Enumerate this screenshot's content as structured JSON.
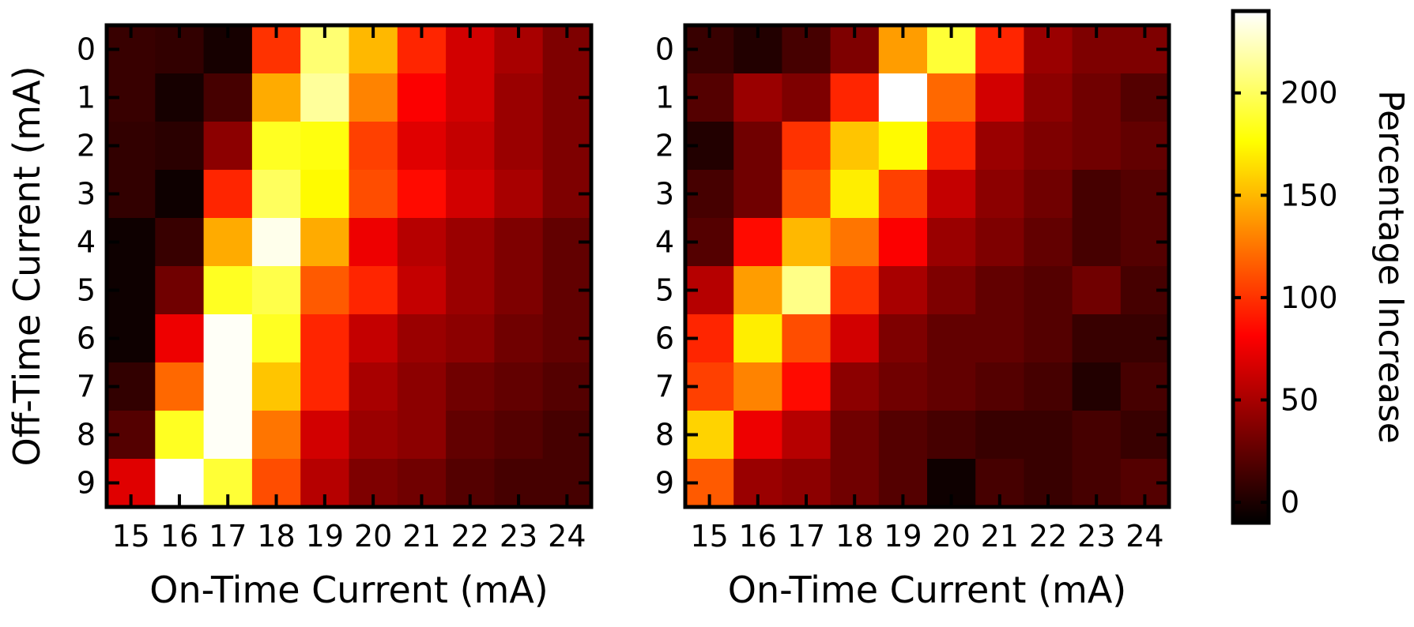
{
  "chart_data": [
    {
      "type": "heatmap",
      "xlabel": "On-Time Current (mA)",
      "ylabel": "Off-Time Current (mA)",
      "x_categories": [
        "15",
        "16",
        "17",
        "18",
        "19",
        "20",
        "21",
        "22",
        "23",
        "24"
      ],
      "y_categories": [
        "0",
        "1",
        "2",
        "3",
        "4",
        "5",
        "6",
        "7",
        "8",
        "9"
      ],
      "values": [
        [
          10,
          8,
          -2,
          100,
          205,
          150,
          95,
          65,
          50,
          35
        ],
        [
          10,
          -2,
          15,
          145,
          215,
          130,
          80,
          65,
          45,
          35
        ],
        [
          8,
          5,
          40,
          185,
          180,
          105,
          70,
          60,
          45,
          35
        ],
        [
          8,
          -5,
          95,
          200,
          175,
          110,
          85,
          65,
          50,
          35
        ],
        [
          -5,
          10,
          145,
          235,
          145,
          75,
          55,
          45,
          35,
          25
        ],
        [
          -5,
          30,
          185,
          195,
          115,
          95,
          60,
          45,
          35,
          25
        ],
        [
          -5,
          75,
          238,
          185,
          95,
          60,
          45,
          40,
          30,
          25
        ],
        [
          8,
          120,
          238,
          155,
          95,
          50,
          40,
          30,
          25,
          20
        ],
        [
          20,
          185,
          238,
          125,
          65,
          45,
          40,
          25,
          20,
          15
        ],
        [
          70,
          240,
          190,
          110,
          55,
          35,
          30,
          20,
          15,
          15
        ]
      ]
    },
    {
      "type": "heatmap",
      "xlabel": "On-Time Current (mA)",
      "ylabel": "",
      "x_categories": [
        "15",
        "16",
        "17",
        "18",
        "19",
        "20",
        "21",
        "22",
        "23",
        "24"
      ],
      "y_categories": [
        "0",
        "1",
        "2",
        "3",
        "4",
        "5",
        "6",
        "7",
        "8",
        "9"
      ],
      "values": [
        [
          10,
          2,
          15,
          35,
          140,
          190,
          95,
          45,
          35,
          35
        ],
        [
          20,
          45,
          35,
          95,
          240,
          120,
          65,
          40,
          30,
          20
        ],
        [
          2,
          30,
          100,
          155,
          175,
          95,
          45,
          35,
          30,
          25
        ],
        [
          15,
          30,
          110,
          170,
          105,
          60,
          40,
          30,
          15,
          20
        ],
        [
          20,
          85,
          150,
          125,
          80,
          45,
          35,
          25,
          15,
          20
        ],
        [
          55,
          140,
          210,
          100,
          50,
          35,
          25,
          20,
          30,
          15
        ],
        [
          95,
          170,
          110,
          65,
          35,
          25,
          25,
          20,
          10,
          10
        ],
        [
          105,
          130,
          85,
          40,
          30,
          25,
          20,
          15,
          2,
          15
        ],
        [
          160,
          75,
          55,
          30,
          20,
          15,
          10,
          10,
          15,
          10
        ],
        [
          115,
          45,
          40,
          30,
          20,
          -5,
          15,
          10,
          15,
          20
        ]
      ]
    }
  ],
  "colorbar": {
    "label": "Percentage Increase",
    "min": -10,
    "max": 240,
    "ticks": [
      "0",
      "50",
      "100",
      "150",
      "200"
    ],
    "colormap": "hot"
  }
}
